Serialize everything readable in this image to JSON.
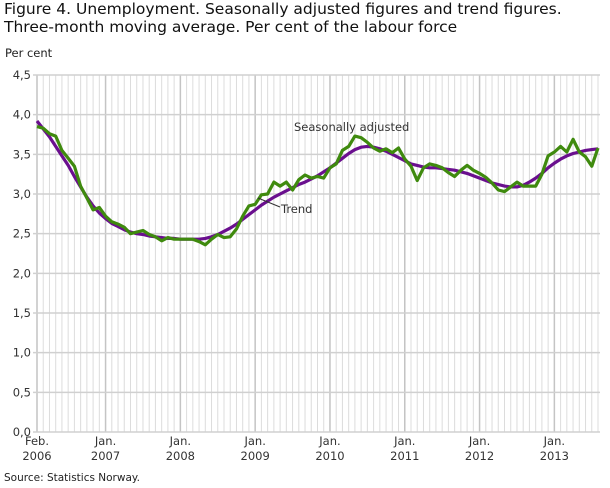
{
  "title_line1": "Figure 4.  Unemployment. Seasonally adjusted figures and trend figures.",
  "title_line2": "Three-month moving average. Per cent of the labour force",
  "source": "Source: Statistics Norway.",
  "chart_data": {
    "type": "line",
    "title": "Figure 4. Unemployment. Seasonally adjusted figures and trend figures. Three-month moving average. Per cent of the labour force",
    "ylabel": "Per cent",
    "xlabel": "",
    "ylim": [
      0,
      4.5
    ],
    "yticks": [
      "0,0",
      "0,5",
      "1,0",
      "1,5",
      "2,0",
      "2,5",
      "3,0",
      "3,5",
      "4,0",
      "4,5"
    ],
    "xticks": [
      {
        "line1": "Feb.",
        "line2": "2006",
        "index": 0
      },
      {
        "line1": "Jan.",
        "line2": "2007",
        "index": 11
      },
      {
        "line1": "Jan.",
        "line2": "2008",
        "index": 23
      },
      {
        "line1": "Jan.",
        "line2": "2009",
        "index": 35
      },
      {
        "line1": "Jan.",
        "line2": "2010",
        "index": 47
      },
      {
        "line1": "Jan.",
        "line2": "2011",
        "index": 59
      },
      {
        "line1": "Jan.",
        "line2": "2012",
        "index": 71
      },
      {
        "line1": "Jan.",
        "line2": "2013",
        "index": 83
      }
    ],
    "x_range": "Feb. 2006 - Aug. 2013 (monthly)",
    "grid": true,
    "series": [
      {
        "name": "Seasonally adjusted",
        "color": "#3f8a0e",
        "values": [
          3.85,
          3.83,
          3.76,
          3.73,
          3.55,
          3.45,
          3.35,
          3.1,
          2.95,
          2.8,
          2.83,
          2.72,
          2.65,
          2.62,
          2.58,
          2.5,
          2.52,
          2.54,
          2.49,
          2.46,
          2.41,
          2.45,
          2.43,
          2.43,
          2.43,
          2.43,
          2.4,
          2.36,
          2.43,
          2.49,
          2.45,
          2.46,
          2.56,
          2.72,
          2.85,
          2.87,
          2.99,
          3.0,
          3.15,
          3.1,
          3.15,
          3.05,
          3.18,
          3.24,
          3.2,
          3.22,
          3.2,
          3.33,
          3.38,
          3.55,
          3.6,
          3.73,
          3.71,
          3.65,
          3.58,
          3.54,
          3.57,
          3.52,
          3.58,
          3.44,
          3.35,
          3.17,
          3.33,
          3.38,
          3.36,
          3.33,
          3.27,
          3.22,
          3.3,
          3.36,
          3.3,
          3.26,
          3.21,
          3.14,
          3.05,
          3.03,
          3.09,
          3.15,
          3.1,
          3.1,
          3.1,
          3.25,
          3.48,
          3.53,
          3.6,
          3.53,
          3.69,
          3.53,
          3.47,
          3.35,
          3.58
        ]
      },
      {
        "name": "Trend",
        "color": "#6a0f8e",
        "values": [
          3.92,
          3.82,
          3.72,
          3.6,
          3.48,
          3.36,
          3.22,
          3.09,
          2.96,
          2.85,
          2.76,
          2.69,
          2.63,
          2.59,
          2.55,
          2.52,
          2.5,
          2.49,
          2.47,
          2.46,
          2.45,
          2.44,
          2.44,
          2.43,
          2.43,
          2.43,
          2.43,
          2.44,
          2.46,
          2.49,
          2.53,
          2.57,
          2.62,
          2.68,
          2.74,
          2.8,
          2.86,
          2.91,
          2.96,
          3.0,
          3.04,
          3.08,
          3.12,
          3.15,
          3.19,
          3.23,
          3.28,
          3.33,
          3.39,
          3.45,
          3.51,
          3.56,
          3.59,
          3.6,
          3.59,
          3.57,
          3.54,
          3.5,
          3.46,
          3.42,
          3.38,
          3.36,
          3.34,
          3.33,
          3.33,
          3.32,
          3.31,
          3.3,
          3.28,
          3.26,
          3.23,
          3.2,
          3.17,
          3.14,
          3.12,
          3.1,
          3.09,
          3.09,
          3.11,
          3.15,
          3.2,
          3.26,
          3.33,
          3.39,
          3.44,
          3.48,
          3.51,
          3.53,
          3.55,
          3.56,
          3.57
        ]
      }
    ],
    "annotations": [
      "Seasonally adjusted",
      "Trend"
    ]
  }
}
